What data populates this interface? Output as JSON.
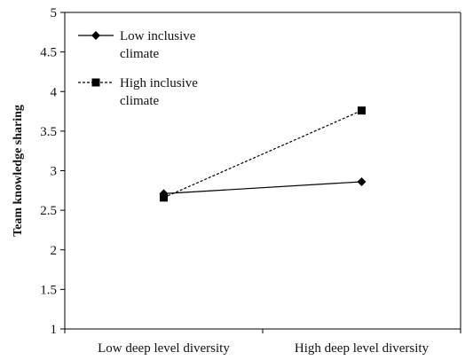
{
  "chart_data": {
    "type": "line",
    "categories": [
      "Low deep level diversity",
      "High deep level diversity"
    ],
    "series": [
      {
        "name": "Low inclusive climate",
        "values": [
          2.71,
          2.86
        ],
        "line_style": "solid",
        "marker": "diamond",
        "color": "#000000"
      },
      {
        "name": "High inclusive climate",
        "values": [
          2.66,
          3.76
        ],
        "line_style": "dashed",
        "marker": "square",
        "color": "#000000"
      }
    ],
    "ylabel": "Team knowledge sharing",
    "xlabel": "",
    "ylim": [
      1,
      5
    ],
    "yticks": [
      "1",
      "1.5",
      "2",
      "2.5",
      "3",
      "3.5",
      "4",
      "4.5",
      "5"
    ],
    "grid": false,
    "legend_position": "top-left",
    "legend_lines": [
      [
        "Low inclusive",
        "climate"
      ],
      [
        "High inclusive",
        "climate"
      ]
    ]
  }
}
